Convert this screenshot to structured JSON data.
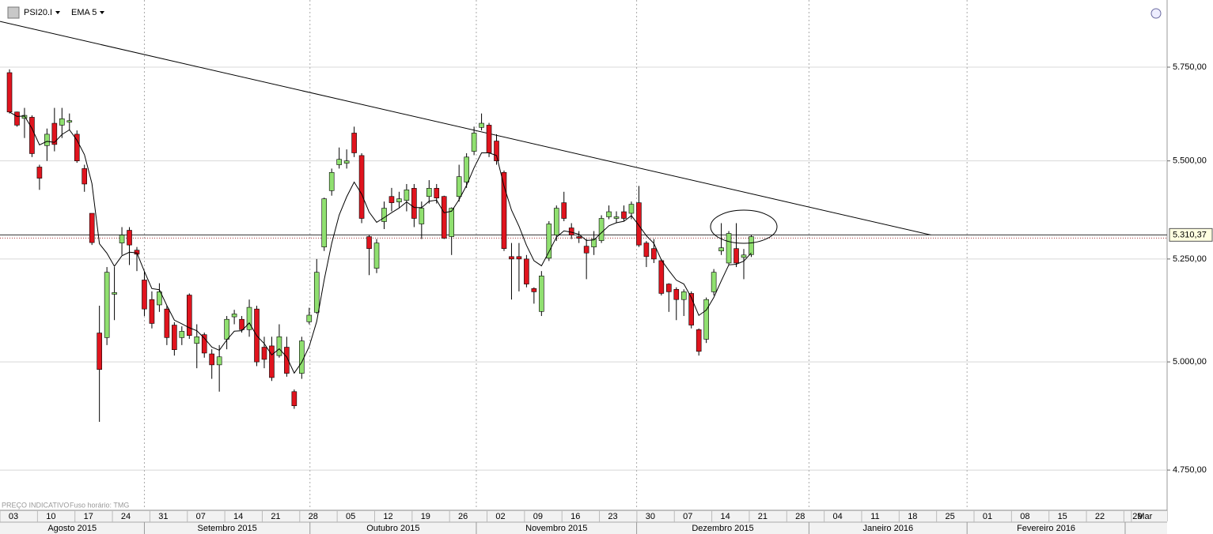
{
  "chart_data": {
    "type": "candlestick",
    "symbol": "PSI20.I",
    "indicator": {
      "name": "EMA 5",
      "period": 5,
      "color": "#000000"
    },
    "footnote": "PREÇO INDICATIVO",
    "timezone": "Fuso horário: TMG",
    "log_scale": true,
    "grid": true,
    "up_color": "#90e070",
    "down_color": "#e0141e",
    "ylim": [
      4662,
      5936
    ],
    "yticks": [
      {
        "value": 4750,
        "label": "4.750,00"
      },
      {
        "value": 5000,
        "label": "5.000,00"
      },
      {
        "value": 5250,
        "label": "5.250,00"
      },
      {
        "value": 5500,
        "label": "5.500,00"
      },
      {
        "value": 5750,
        "label": "5.750,00"
      }
    ],
    "xlim": [
      -1.27,
      154.5
    ],
    "xticks": [
      {
        "value": 0,
        "label": "03"
      },
      {
        "value": 5,
        "label": "10"
      },
      {
        "value": 10,
        "label": "17"
      },
      {
        "value": 15,
        "label": "24"
      },
      {
        "value": 20,
        "label": "31"
      },
      {
        "value": 25,
        "label": "07"
      },
      {
        "value": 30,
        "label": "14"
      },
      {
        "value": 35,
        "label": "21"
      },
      {
        "value": 40,
        "label": "28"
      },
      {
        "value": 45,
        "label": "05"
      },
      {
        "value": 50,
        "label": "12"
      },
      {
        "value": 55,
        "label": "19"
      },
      {
        "value": 60,
        "label": "26"
      },
      {
        "value": 65,
        "label": "02"
      },
      {
        "value": 70,
        "label": "09"
      },
      {
        "value": 75,
        "label": "16"
      },
      {
        "value": 80,
        "label": "23"
      },
      {
        "value": 85,
        "label": "30"
      },
      {
        "value": 90,
        "label": "07"
      },
      {
        "value": 95,
        "label": "14"
      },
      {
        "value": 100,
        "label": "21"
      },
      {
        "value": 105,
        "label": "28"
      },
      {
        "value": 110,
        "label": "04"
      },
      {
        "value": 115,
        "label": "11"
      },
      {
        "value": 120,
        "label": "18"
      },
      {
        "value": 125,
        "label": "25"
      },
      {
        "value": 130,
        "label": "01"
      },
      {
        "value": 135,
        "label": "08"
      },
      {
        "value": 140,
        "label": "15"
      },
      {
        "value": 145,
        "label": "22"
      },
      {
        "value": 150,
        "label": "29"
      },
      {
        "value": 151,
        "label": "Mar"
      }
    ],
    "months": [
      {
        "label": "Agosto 2015",
        "from": -1.27,
        "to": 18
      },
      {
        "label": "Setembro 2015",
        "from": 18,
        "to": 40.1
      },
      {
        "label": "Outubro 2015",
        "from": 40.1,
        "to": 62.3
      },
      {
        "label": "Novembro 2015",
        "from": 62.3,
        "to": 83.7
      },
      {
        "label": "Dezembro 2015",
        "from": 83.7,
        "to": 106.7
      },
      {
        "label": "Janeiro 2016",
        "from": 106.7,
        "to": 127.8
      },
      {
        "label": "Fevereiro 2016",
        "from": 127.8,
        "to": 148.9
      }
    ],
    "last_price": {
      "value": 5310.37,
      "label": "5.310,37"
    },
    "trendline": {
      "x": [
        -1.27,
        123.0
      ],
      "y": [
        5876,
        5310
      ]
    },
    "open": [
      5735,
      5629,
      5612,
      5615,
      5484,
      5540,
      5599,
      5594,
      5602,
      5570,
      5480,
      5365,
      5069,
      5058,
      5163,
      5290,
      5322,
      5272,
      5198,
      5150,
      5137,
      5127,
      5088,
      5058,
      5161,
      5044,
      5065,
      5019,
      4993,
      5054,
      5108,
      5102,
      5077,
      5127,
      5035,
      5038,
      5015,
      5035,
      4930,
      4973,
      5096,
      5119,
      5280,
      5423,
      5490,
      5494,
      5573,
      5514,
      5306,
      5227,
      5344,
      5408,
      5394,
      5398,
      5429,
      5338,
      5408,
      5429,
      5408,
      5306,
      5408,
      5445,
      5525,
      5588,
      5594,
      5552,
      5470,
      5256,
      5256,
      5250,
      5177,
      5121,
      5252,
      5310,
      5392,
      5328,
      5306,
      5282,
      5280,
      5296,
      5356,
      5352,
      5369,
      5365,
      5392,
      5290,
      5276,
      5246,
      5188,
      5175,
      5150,
      5165,
      5077,
      5054,
      5169,
      5270,
      5240,
      5276,
      5254,
      5261
    ],
    "high": [
      5744,
      5630,
      5640,
      5620,
      5490,
      5585,
      5640,
      5640,
      5625,
      5580,
      5490,
      5365,
      5135,
      5230,
      5230,
      5330,
      5330,
      5280,
      5220,
      5170,
      5190,
      5135,
      5095,
      5085,
      5165,
      5090,
      5070,
      5030,
      5040,
      5110,
      5125,
      5110,
      5150,
      5135,
      5060,
      5060,
      5090,
      5060,
      4935,
      5060,
      5130,
      5250,
      5405,
      5480,
      5535,
      5530,
      5590,
      5520,
      5310,
      5300,
      5395,
      5430,
      5420,
      5440,
      5440,
      5395,
      5450,
      5440,
      5410,
      5380,
      5490,
      5520,
      5590,
      5625,
      5600,
      5570,
      5475,
      5290,
      5290,
      5260,
      5180,
      5220,
      5345,
      5385,
      5420,
      5340,
      5320,
      5300,
      5320,
      5360,
      5385,
      5370,
      5385,
      5395,
      5435,
      5295,
      5300,
      5250,
      5190,
      5180,
      5175,
      5170,
      5080,
      5155,
      5225,
      5340,
      5320,
      5340,
      5275,
      5310
    ],
    "low": [
      5625,
      5590,
      5560,
      5510,
      5425,
      5500,
      5525,
      5560,
      5580,
      5495,
      5420,
      5285,
      4860,
      5040,
      5100,
      5260,
      5235,
      5220,
      5110,
      5080,
      5120,
      5040,
      5015,
      5040,
      5055,
      4985,
      5010,
      4960,
      4930,
      5030,
      5090,
      5070,
      5060,
      4990,
      4985,
      4955,
      5010,
      4965,
      4890,
      4960,
      5090,
      5115,
      5270,
      5410,
      5480,
      5480,
      5510,
      5340,
      5210,
      5215,
      5325,
      5370,
      5380,
      5370,
      5330,
      5300,
      5390,
      5390,
      5300,
      5260,
      5395,
      5430,
      5515,
      5580,
      5510,
      5490,
      5270,
      5150,
      5170,
      5180,
      5140,
      5110,
      5245,
      5295,
      5345,
      5300,
      5290,
      5200,
      5260,
      5290,
      5350,
      5340,
      5345,
      5350,
      5280,
      5230,
      5240,
      5160,
      5120,
      5100,
      5110,
      5080,
      5015,
      5045,
      5160,
      5260,
      5235,
      5230,
      5200,
      5255
    ],
    "close": [
      5629,
      5594,
      5620,
      5519,
      5455,
      5570,
      5543,
      5611,
      5606,
      5500,
      5440,
      5291,
      4982,
      5217,
      5167,
      5310,
      5285,
      5262,
      5127,
      5092,
      5169,
      5058,
      5029,
      5073,
      5063,
      5060,
      5021,
      4993,
      5012,
      5102,
      5115,
      5077,
      5131,
      5000,
      5006,
      4963,
      5060,
      4973,
      4897,
      5050,
      5112,
      5217,
      5402,
      5470,
      5504,
      5500,
      5521,
      5352,
      5276,
      5290,
      5378,
      5392,
      5402,
      5425,
      5352,
      5378,
      5429,
      5404,
      5302,
      5378,
      5459,
      5510,
      5573,
      5599,
      5521,
      5500,
      5276,
      5250,
      5250,
      5188,
      5169,
      5208,
      5338,
      5378,
      5352,
      5310,
      5302,
      5265,
      5300,
      5352,
      5369,
      5356,
      5352,
      5388,
      5285,
      5256,
      5250,
      5165,
      5169,
      5150,
      5169,
      5088,
      5025,
      5150,
      5217,
      5278,
      5314,
      5240,
      5260,
      5306
    ]
  }
}
